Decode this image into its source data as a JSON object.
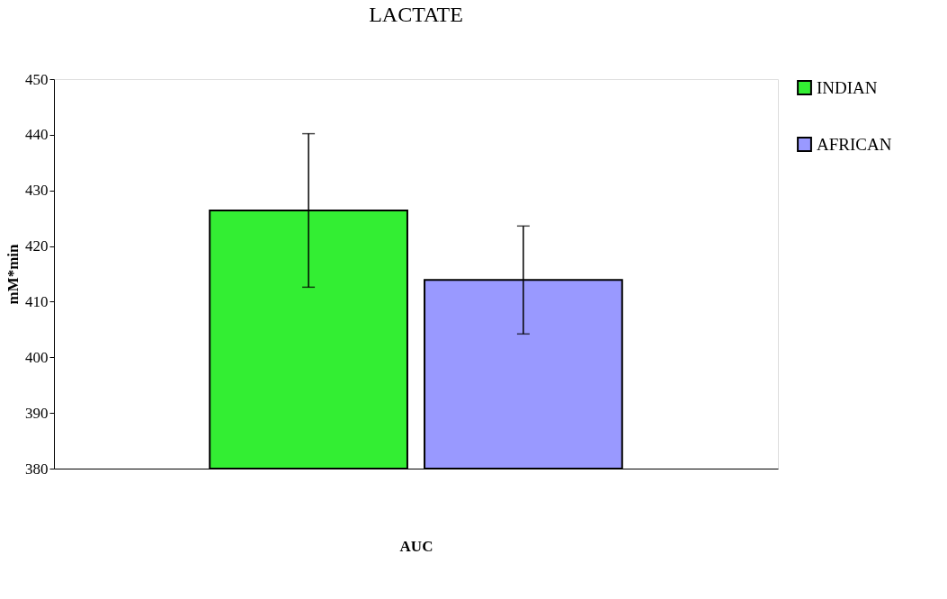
{
  "chart_data": {
    "type": "bar",
    "title": "LACTATE",
    "xlabel": "AUC",
    "ylabel": "mM*min",
    "categories": [
      null
    ],
    "series": [
      {
        "name": "INDIAN",
        "color": "#33ee33",
        "values": [
          426.4
        ],
        "errors": [
          13.8
        ]
      },
      {
        "name": "AFRICAN",
        "color": "#9999ff",
        "values": [
          413.9
        ],
        "errors": [
          9.7
        ]
      }
    ],
    "ylim": [
      380,
      450
    ],
    "yticks": [
      380,
      390,
      400,
      410,
      420,
      430,
      440,
      450
    ],
    "grid": false,
    "legend": "right"
  }
}
